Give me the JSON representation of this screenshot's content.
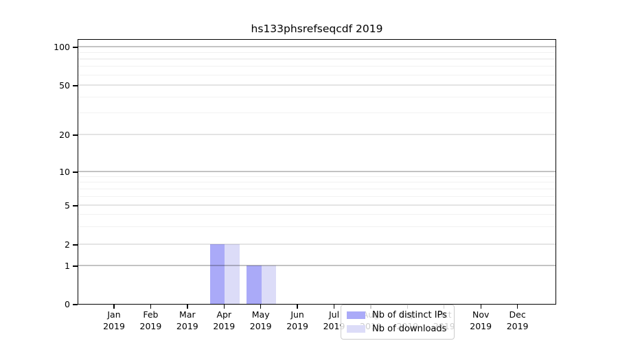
{
  "chart_data": {
    "type": "bar",
    "title": "hs133phsrefseqcdf 2019",
    "categories": [
      "Jan",
      "Feb",
      "Mar",
      "Apr",
      "May",
      "Jun",
      "Jul",
      "Aug",
      "Sep",
      "Oct",
      "Nov",
      "Dec"
    ],
    "category_year": "2019",
    "series": [
      {
        "name": "Nb of distinct IPs",
        "color": "#aaaaf8",
        "values": [
          0,
          0,
          0,
          2,
          1,
          0,
          0,
          0,
          0,
          0,
          0,
          0
        ]
      },
      {
        "name": "Nb of downloads",
        "color": "#dcdcf8",
        "values": [
          0,
          0,
          0,
          2,
          1,
          0,
          0,
          0,
          0,
          0,
          0,
          0
        ]
      }
    ],
    "y_axis": {
      "tick_labels": [
        "0",
        "1",
        "2",
        "5",
        "10",
        "20",
        "50",
        "100"
      ],
      "tick_values": [
        0,
        1,
        2,
        5,
        10,
        20,
        50,
        100
      ],
      "minor_gridline_values": [
        3,
        4,
        6,
        7,
        8,
        9,
        30,
        40,
        60,
        70,
        80,
        90
      ],
      "scale": "log-like above 1, compressed linear segment 0-1",
      "range": [
        0,
        120
      ]
    },
    "xlabel": "",
    "ylabel": "",
    "grid": true,
    "legend": {
      "position": "lower-center",
      "entries": [
        "Nb of distinct IPs",
        "Nb of downloads"
      ]
    }
  }
}
